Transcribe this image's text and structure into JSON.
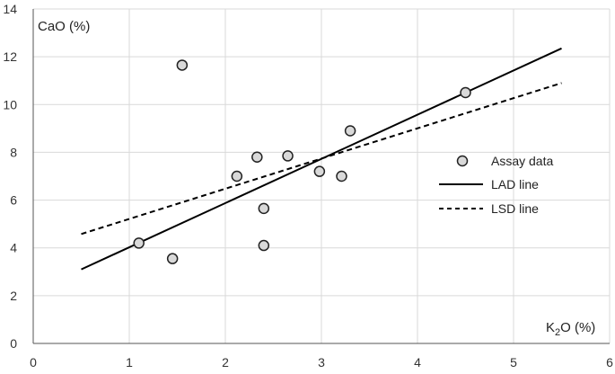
{
  "chart_data": {
    "type": "scatter",
    "title": "",
    "xlabel_main": "K",
    "xlabel_sub": "2",
    "xlabel_rest": "O (%)",
    "ylabel": "CaO (%)",
    "xlim": [
      0,
      6
    ],
    "ylim": [
      0,
      14
    ],
    "xticks": [
      "0",
      "1",
      "2",
      "3",
      "4",
      "5",
      "6"
    ],
    "yticks": [
      "0",
      "2",
      "4",
      "6",
      "8",
      "10",
      "12",
      "14"
    ],
    "grid": true,
    "legend_position": "right",
    "series": [
      {
        "name": "Assay data",
        "kind": "points",
        "marker": "circle",
        "color": "#d9d9d9",
        "x": [
          1.1,
          1.45,
          1.55,
          2.12,
          2.33,
          2.4,
          2.4,
          2.65,
          2.98,
          3.21,
          3.3,
          4.5
        ],
        "y": [
          4.2,
          3.55,
          11.65,
          7.0,
          7.8,
          4.1,
          5.65,
          7.85,
          7.2,
          7.0,
          8.9,
          10.5
        ]
      },
      {
        "name": "LAD line",
        "kind": "line",
        "style": "solid",
        "color": "#000000",
        "x": [
          0.5,
          5.5
        ],
        "y": [
          3.1,
          12.35
        ]
      },
      {
        "name": "LSD line",
        "kind": "line",
        "style": "dashed",
        "color": "#000000",
        "x": [
          0.5,
          5.5
        ],
        "y": [
          4.58,
          10.9
        ]
      }
    ]
  }
}
